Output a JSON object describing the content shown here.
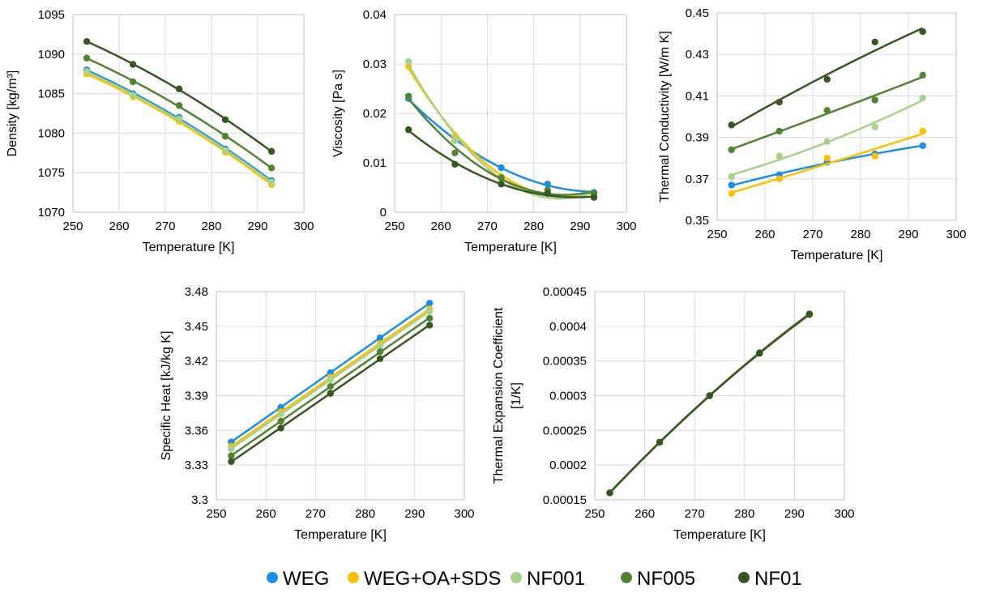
{
  "legend": {
    "items": [
      {
        "name": "WEG",
        "color": "#1a8fe3"
      },
      {
        "name": "WEG+OA+SDS",
        "color": "#ffc000"
      },
      {
        "name": "NF001",
        "color": "#a9d18e"
      },
      {
        "name": "NF005",
        "color": "#548235"
      },
      {
        "name": "NF01",
        "color": "#375623"
      }
    ]
  },
  "chart_data": [
    {
      "id": "density",
      "type": "scatter",
      "trendline": "polynomial",
      "xlabel": "Temperature [K]",
      "ylabel": "Density [kg/m³]",
      "xlim": [
        250,
        300
      ],
      "ylim": [
        1070,
        1095
      ],
      "xticks": [
        250,
        260,
        270,
        280,
        290,
        300
      ],
      "yticks": [
        1070,
        1075,
        1080,
        1085,
        1090,
        1095
      ],
      "grid": true,
      "x": [
        253,
        263,
        273,
        283,
        293
      ],
      "series": [
        {
          "name": "WEG",
          "color": "#1a8fe3",
          "values": [
            1088.0,
            1085.0,
            1082.0,
            1078.0,
            1074.0
          ]
        },
        {
          "name": "WEG+OA+SDS",
          "color": "#ffc000",
          "values": [
            1087.5,
            1084.6,
            1081.5,
            1077.6,
            1073.5
          ]
        },
        {
          "name": "NF001",
          "color": "#a9d18e",
          "values": [
            1087.8,
            1084.8,
            1081.8,
            1077.8,
            1073.8
          ]
        },
        {
          "name": "NF005",
          "color": "#548235",
          "values": [
            1089.5,
            1086.5,
            1083.5,
            1079.6,
            1075.6
          ]
        },
        {
          "name": "NF01",
          "color": "#375623",
          "values": [
            1091.6,
            1088.7,
            1085.6,
            1081.7,
            1077.7
          ]
        }
      ]
    },
    {
      "id": "viscosity",
      "type": "scatter",
      "trendline": "polynomial",
      "xlabel": "Temperature [K]",
      "ylabel": "Viscosity [Pa s]",
      "xlim": [
        250,
        300
      ],
      "ylim": [
        0,
        0.04
      ],
      "xticks": [
        250,
        260,
        270,
        280,
        290,
        300
      ],
      "yticks": [
        0,
        0.01,
        0.02,
        0.03,
        0.04
      ],
      "ytick_labels": [
        "0",
        "0.01",
        "0.02",
        "0.03",
        "0.04"
      ],
      "grid": true,
      "x": [
        253,
        263,
        273,
        283,
        293
      ],
      "series": [
        {
          "name": "WEG",
          "color": "#1a8fe3",
          "values": [
            0.023,
            0.0145,
            0.009,
            0.0057,
            0.004
          ]
        },
        {
          "name": "WEG+OA+SDS",
          "color": "#ffc000",
          "values": [
            0.0295,
            0.0155,
            0.0072,
            0.0045,
            0.0035
          ]
        },
        {
          "name": "NF001",
          "color": "#a9d18e",
          "values": [
            0.0305,
            0.0145,
            0.0068,
            0.0042,
            0.0035
          ]
        },
        {
          "name": "NF005",
          "color": "#548235",
          "values": [
            0.0235,
            0.012,
            0.007,
            0.0045,
            0.0038
          ]
        },
        {
          "name": "NF01",
          "color": "#375623",
          "values": [
            0.0167,
            0.0097,
            0.0057,
            0.0038,
            0.003
          ]
        }
      ]
    },
    {
      "id": "thermal-conductivity",
      "type": "scatter",
      "trendline": "polynomial",
      "xlabel": "Temperature [K]",
      "ylabel": "Thermal Conductivity [W/m K]",
      "xlim": [
        250,
        300
      ],
      "ylim": [
        0.35,
        0.45
      ],
      "xticks": [
        250,
        260,
        270,
        280,
        290,
        300
      ],
      "yticks": [
        0.35,
        0.37,
        0.39,
        0.41,
        0.43,
        0.45
      ],
      "ytick_labels": [
        "0.35",
        "0.37",
        "0.39",
        "0.41",
        "0.43",
        "0.45"
      ],
      "grid": true,
      "x": [
        253,
        263,
        273,
        283,
        293
      ],
      "series": [
        {
          "name": "WEG",
          "color": "#1a8fe3",
          "values": [
            0.367,
            0.372,
            0.378,
            0.382,
            0.386
          ]
        },
        {
          "name": "WEG+OA+SDS",
          "color": "#ffc000",
          "values": [
            0.363,
            0.37,
            0.38,
            0.381,
            0.393
          ]
        },
        {
          "name": "NF001",
          "color": "#a9d18e",
          "values": [
            0.371,
            0.381,
            0.388,
            0.395,
            0.409
          ]
        },
        {
          "name": "NF005",
          "color": "#548235",
          "values": [
            0.384,
            0.393,
            0.403,
            0.408,
            0.42
          ]
        },
        {
          "name": "NF01",
          "color": "#375623",
          "values": [
            0.396,
            0.407,
            0.418,
            0.436,
            0.441
          ]
        }
      ]
    },
    {
      "id": "specific-heat",
      "type": "scatter",
      "trendline": "linear",
      "xlabel": "Temperature [K]",
      "ylabel": "Specific Heat [kJ/kg K]",
      "xlim": [
        250,
        300
      ],
      "ylim": [
        3.3,
        3.48
      ],
      "xticks": [
        250,
        260,
        270,
        280,
        290,
        300
      ],
      "yticks": [
        3.3,
        3.33,
        3.36,
        3.39,
        3.42,
        3.45,
        3.48
      ],
      "ytick_labels": [
        "3.3",
        "3.33",
        "3.36",
        "3.39",
        "3.42",
        "3.45",
        "3.48"
      ],
      "grid": true,
      "x": [
        253,
        263,
        273,
        283,
        293
      ],
      "series": [
        {
          "name": "WEG",
          "color": "#1a8fe3",
          "values": [
            3.35,
            3.38,
            3.41,
            3.44,
            3.47
          ]
        },
        {
          "name": "WEG+OA+SDS",
          "color": "#ffc000",
          "values": [
            3.346,
            3.376,
            3.406,
            3.435,
            3.465
          ]
        },
        {
          "name": "NF001",
          "color": "#a9d18e",
          "values": [
            3.344,
            3.374,
            3.404,
            3.433,
            3.463
          ]
        },
        {
          "name": "NF005",
          "color": "#548235",
          "values": [
            3.338,
            3.368,
            3.398,
            3.428,
            3.457
          ]
        },
        {
          "name": "NF01",
          "color": "#375623",
          "values": [
            3.333,
            3.362,
            3.392,
            3.422,
            3.451
          ]
        }
      ]
    },
    {
      "id": "thermal-expansion",
      "type": "scatter",
      "trendline": "polynomial",
      "xlabel": "Temperature [K]",
      "ylabel": "Thermal Expansion Coefficient [1/K]",
      "xlim": [
        250,
        300
      ],
      "ylim": [
        0.00015,
        0.00045
      ],
      "xticks": [
        250,
        260,
        270,
        280,
        290,
        300
      ],
      "yticks": [
        0.00015,
        0.0002,
        0.00025,
        0.0003,
        0.00035,
        0.0004,
        0.00045
      ],
      "ytick_labels": [
        "0.00015",
        "0.0002",
        "0.00025",
        "0.0003",
        "0.00035",
        "0.0004",
        "0.00045"
      ],
      "grid": true,
      "x": [
        253,
        263,
        273,
        283,
        293
      ],
      "series": [
        {
          "name": "WEG",
          "color": "#1a8fe3",
          "values": [
            0.00016,
            0.000233,
            0.0003,
            0.000362,
            0.000418
          ]
        },
        {
          "name": "WEG+OA+SDS",
          "color": "#ffc000",
          "values": [
            0.00016,
            0.000233,
            0.0003,
            0.000362,
            0.000418
          ]
        },
        {
          "name": "NF001",
          "color": "#a9d18e",
          "values": [
            0.00016,
            0.000233,
            0.0003,
            0.000362,
            0.000418
          ]
        },
        {
          "name": "NF005",
          "color": "#548235",
          "values": [
            0.00016,
            0.000233,
            0.0003,
            0.000362,
            0.000418
          ]
        },
        {
          "name": "NF01",
          "color": "#375623",
          "values": [
            0.00016,
            0.000233,
            0.0003,
            0.000361,
            0.000417
          ]
        }
      ]
    }
  ]
}
